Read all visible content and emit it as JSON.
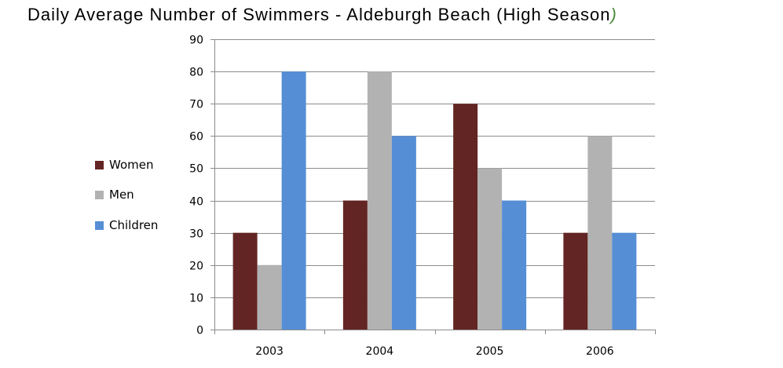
{
  "chart_data": {
    "type": "bar",
    "title": "Daily Average Number of Swimmers - Aldeburgh Beach (High Season",
    "title_close": ")",
    "categories": [
      "2003",
      "2004",
      "2005",
      "2006"
    ],
    "series": [
      {
        "name": "Women",
        "color": "#632523",
        "values": [
          30,
          40,
          70,
          30
        ]
      },
      {
        "name": "Men",
        "color": "#b2b2b2",
        "values": [
          20,
          80,
          50,
          60
        ]
      },
      {
        "name": "Children",
        "color": "#558ed5",
        "values": [
          80,
          60,
          40,
          30
        ]
      }
    ],
    "ylim": [
      0,
      90
    ],
    "yticks": [
      "0",
      "10",
      "20",
      "30",
      "40",
      "50",
      "60",
      "70",
      "80",
      "90"
    ],
    "grid": true,
    "legend": "left",
    "xlabel": "",
    "ylabel": ""
  }
}
